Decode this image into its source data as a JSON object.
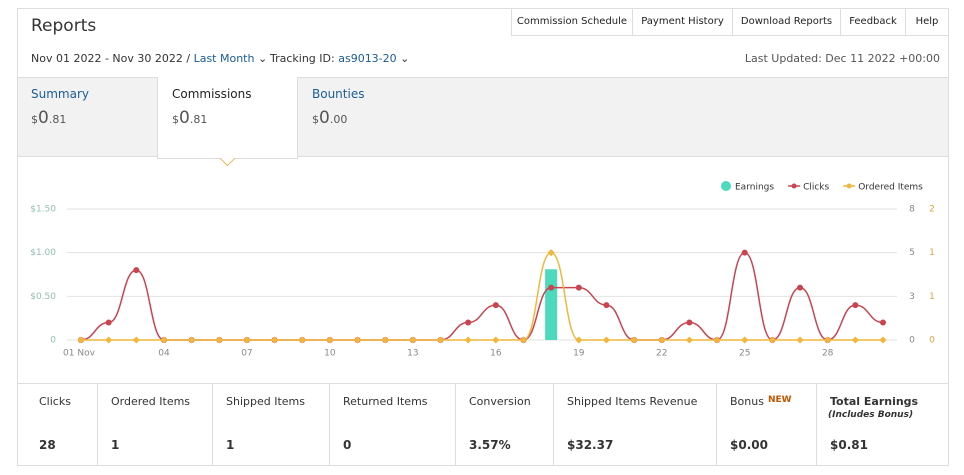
{
  "header": {
    "title": "Reports",
    "nav": [
      "Commission Schedule",
      "Payment History",
      "Download Reports",
      "Feedback",
      "Help"
    ],
    "date_range": "Nov 01 2022 - Nov 30 2022 /",
    "period": "Last Month",
    "tracking_label": "Tracking ID:",
    "tracking_id": "as9013-20",
    "last_updated": "Last Updated: Dec 11 2022 +00:00"
  },
  "tabs": [
    {
      "label": "Summary",
      "currency": "$",
      "whole": "0",
      "fraction": ".81"
    },
    {
      "label": "Commissions",
      "currency": "$",
      "whole": "0",
      "fraction": ".81"
    },
    {
      "label": "Bounties",
      "currency": "$",
      "whole": "0",
      "fraction": ".00"
    }
  ],
  "chart_data": {
    "type": "combo",
    "legend": "top-right",
    "grid": true,
    "categories": [
      "01 Nov",
      null,
      null,
      "04",
      null,
      null,
      "07",
      null,
      null,
      "10",
      null,
      null,
      "13",
      null,
      null,
      "16",
      null,
      null,
      "19",
      null,
      null,
      "22",
      null,
      null,
      "25",
      null,
      null,
      "28",
      null,
      null
    ],
    "ylim": [
      0,
      1.5
    ],
    "yticks": [
      {
        "value": 0,
        "label": "0"
      },
      {
        "value": 0.5,
        "label": "$0.50"
      },
      {
        "value": 1,
        "label": "$1.00"
      },
      {
        "value": 1.5,
        "label": "$1.50"
      }
    ],
    "y2lim": [
      0,
      7.5
    ],
    "y2ticks": [
      0,
      {
        "value": 2.5,
        "label": "3"
      },
      5,
      {
        "value": 7.5,
        "label": "8"
      }
    ],
    "y3lim": [
      0,
      1.5
    ],
    "y3ticks": [
      0,
      {
        "value": 0.5,
        "label": "1"
      },
      1,
      {
        "value": 1.5,
        "label": "2"
      }
    ],
    "series": [
      {
        "name": "Earnings",
        "type": "bar",
        "color": "#4dd9bb",
        "values": [
          0,
          0,
          0,
          0,
          0,
          0,
          0,
          0,
          0,
          0,
          0,
          0,
          0,
          0,
          0,
          0,
          0,
          0.81,
          0,
          0,
          0,
          0,
          0,
          0,
          0,
          0,
          0,
          0,
          0,
          0
        ]
      },
      {
        "name": "Clicks",
        "type": "line",
        "axis": "y2",
        "color": "#c9444f",
        "values": [
          0,
          1,
          4,
          0,
          0,
          0,
          0,
          0,
          0,
          0,
          0,
          0,
          0,
          0,
          1,
          2,
          0,
          3,
          3,
          2,
          0,
          0,
          1,
          0,
          5,
          0,
          3,
          0,
          2,
          1
        ]
      },
      {
        "name": "Ordered Items",
        "type": "line",
        "axis": "y3",
        "color": "#f0b73c",
        "values": [
          0,
          0,
          0,
          0,
          0,
          0,
          0,
          0,
          0,
          0,
          0,
          0,
          0,
          0,
          0,
          0,
          0,
          1,
          0,
          0,
          0,
          0,
          0,
          0,
          0,
          0,
          0,
          0,
          0,
          0
        ]
      }
    ]
  },
  "stats": [
    {
      "label": "Clicks",
      "value": "28"
    },
    {
      "label": "Ordered Items",
      "value": "1"
    },
    {
      "label": "Shipped Items",
      "value": "1"
    },
    {
      "label": "Returned Items",
      "value": "0"
    },
    {
      "label": "Conversion",
      "value": "3.57%"
    },
    {
      "label": "Shipped Items Revenue",
      "value": "$32.37"
    },
    {
      "label": "Bonus",
      "badge": "NEW",
      "value": "$0.00"
    },
    {
      "label": "Total Earnings",
      "sublabel": "(Includes Bonus)",
      "value": "$0.81"
    }
  ]
}
